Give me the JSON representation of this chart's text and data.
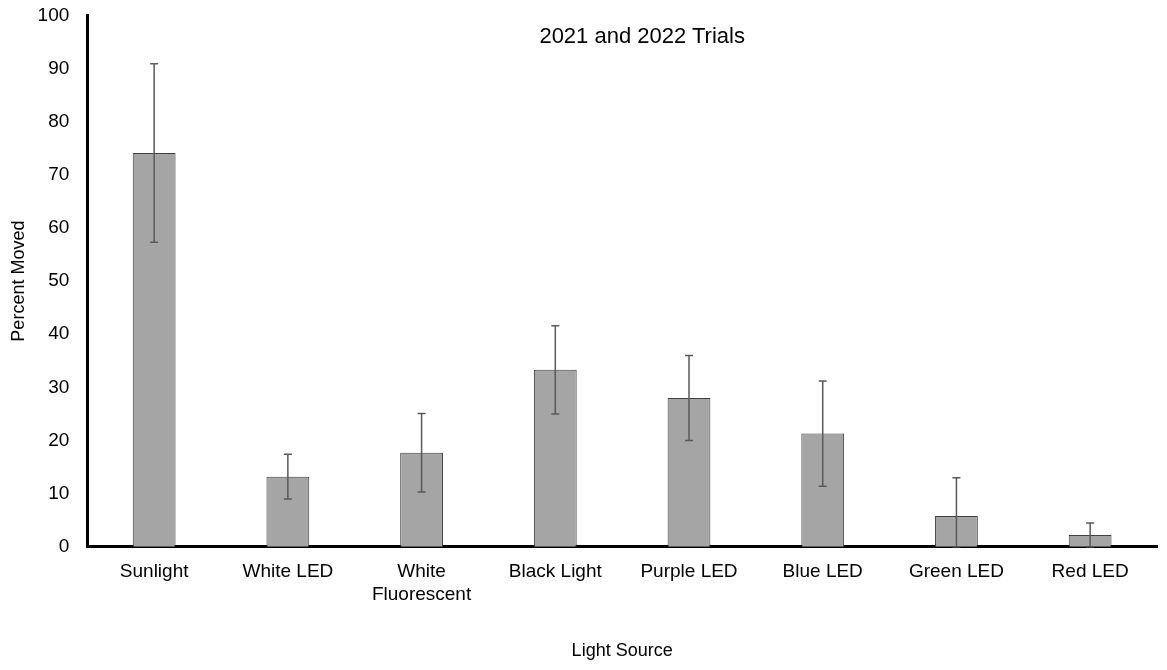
{
  "chart_data": {
    "type": "bar",
    "title": "2021 and 2022 Trials",
    "xlabel": "Light Source",
    "ylabel": "Percent Moved",
    "categories": [
      "Sunlight",
      "White LED",
      "White Fluorescent",
      "Black Light",
      "Purple LED",
      "Blue LED",
      "Green LED",
      "Red LED"
    ],
    "values": [
      74.1,
      13.2,
      17.7,
      33.3,
      28.0,
      21.3,
      5.8,
      2.2
    ],
    "errors": [
      16.8,
      4.2,
      7.4,
      8.3,
      8.0,
      9.9,
      [
        0,
        13.0
      ],
      [
        0,
        4.5
      ]
    ],
    "color": "#a5a5a5",
    "ylim": [
      0,
      100
    ],
    "yticks": [
      0,
      10,
      20,
      30,
      40,
      50,
      60,
      70,
      80,
      90,
      100
    ],
    "grid": false,
    "legend": false
  }
}
